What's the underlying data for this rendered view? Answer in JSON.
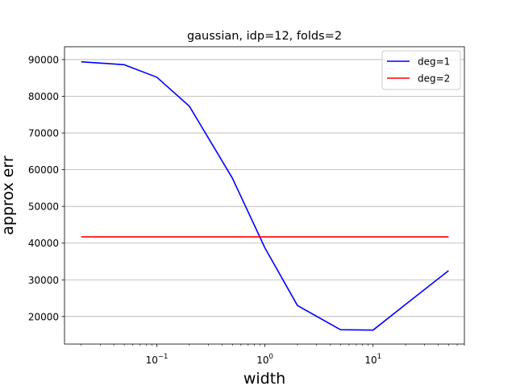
{
  "chart_data": {
    "type": "line",
    "title": "gaussian, idp=12, folds=2",
    "xlabel": "width",
    "ylabel": "approx err",
    "xscale": "log",
    "xlim": [
      0.014,
      70
    ],
    "ylim": [
      12500,
      93500
    ],
    "xticks": [
      {
        "value": 0.1,
        "base": "10",
        "exp": "−1"
      },
      {
        "value": 1,
        "base": "10",
        "exp": "0"
      },
      {
        "value": 10,
        "base": "10",
        "exp": "1"
      }
    ],
    "yticks": [
      20000,
      30000,
      40000,
      50000,
      60000,
      70000,
      80000,
      90000
    ],
    "ytick_labels": [
      "20000",
      "30000",
      "40000",
      "50000",
      "60000",
      "70000",
      "80000",
      "90000"
    ],
    "grid": "y",
    "legend": "top-right",
    "series": [
      {
        "name": "deg=1",
        "color": "#0000ff",
        "x": [
          0.02,
          0.05,
          0.1,
          0.2,
          0.5,
          1,
          2,
          5,
          10,
          20,
          50
        ],
        "y": [
          89400,
          88600,
          85200,
          77300,
          57700,
          38700,
          23000,
          16400,
          16300,
          23300,
          32500
        ]
      },
      {
        "name": "deg=2",
        "color": "#ff0000",
        "x": [
          0.02,
          0.05,
          0.1,
          0.2,
          0.5,
          1,
          2,
          5,
          10,
          20,
          50
        ],
        "y": [
          41700,
          41700,
          41700,
          41700,
          41700,
          41700,
          41700,
          41700,
          41700,
          41700,
          41700
        ]
      }
    ]
  }
}
